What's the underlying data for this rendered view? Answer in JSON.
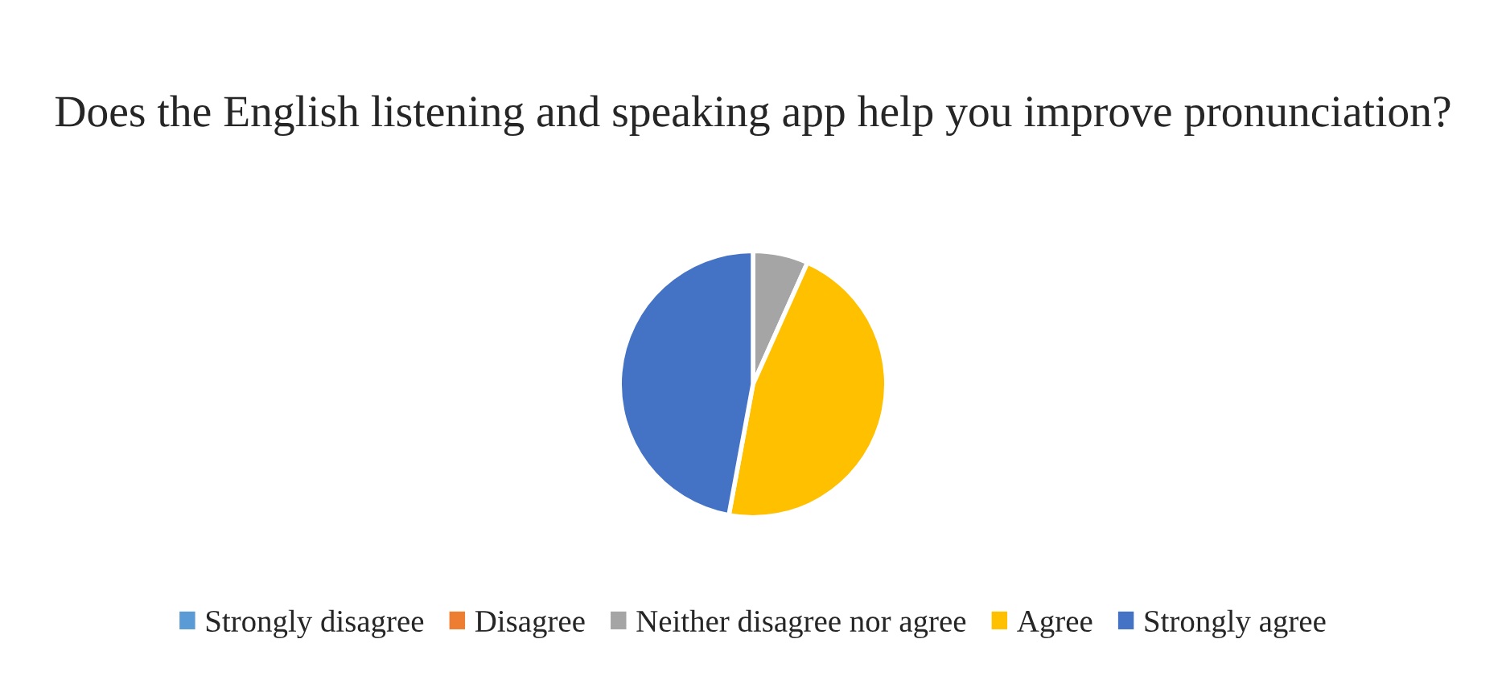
{
  "chart_data": {
    "type": "pie",
    "title": "Does the English listening and speaking app help you improve pronunciation?",
    "categories": [
      "Strongly disagree",
      "Disagree",
      "Neither disagree nor agree",
      "Agree",
      "Strongly agree"
    ],
    "values": [
      0,
      0,
      6.7,
      46.2,
      47.1
    ],
    "colors": [
      "#5b9bd5",
      "#ed7d31",
      "#a5a5a5",
      "#ffc000",
      "#4472c4"
    ],
    "legend": "bottom"
  }
}
